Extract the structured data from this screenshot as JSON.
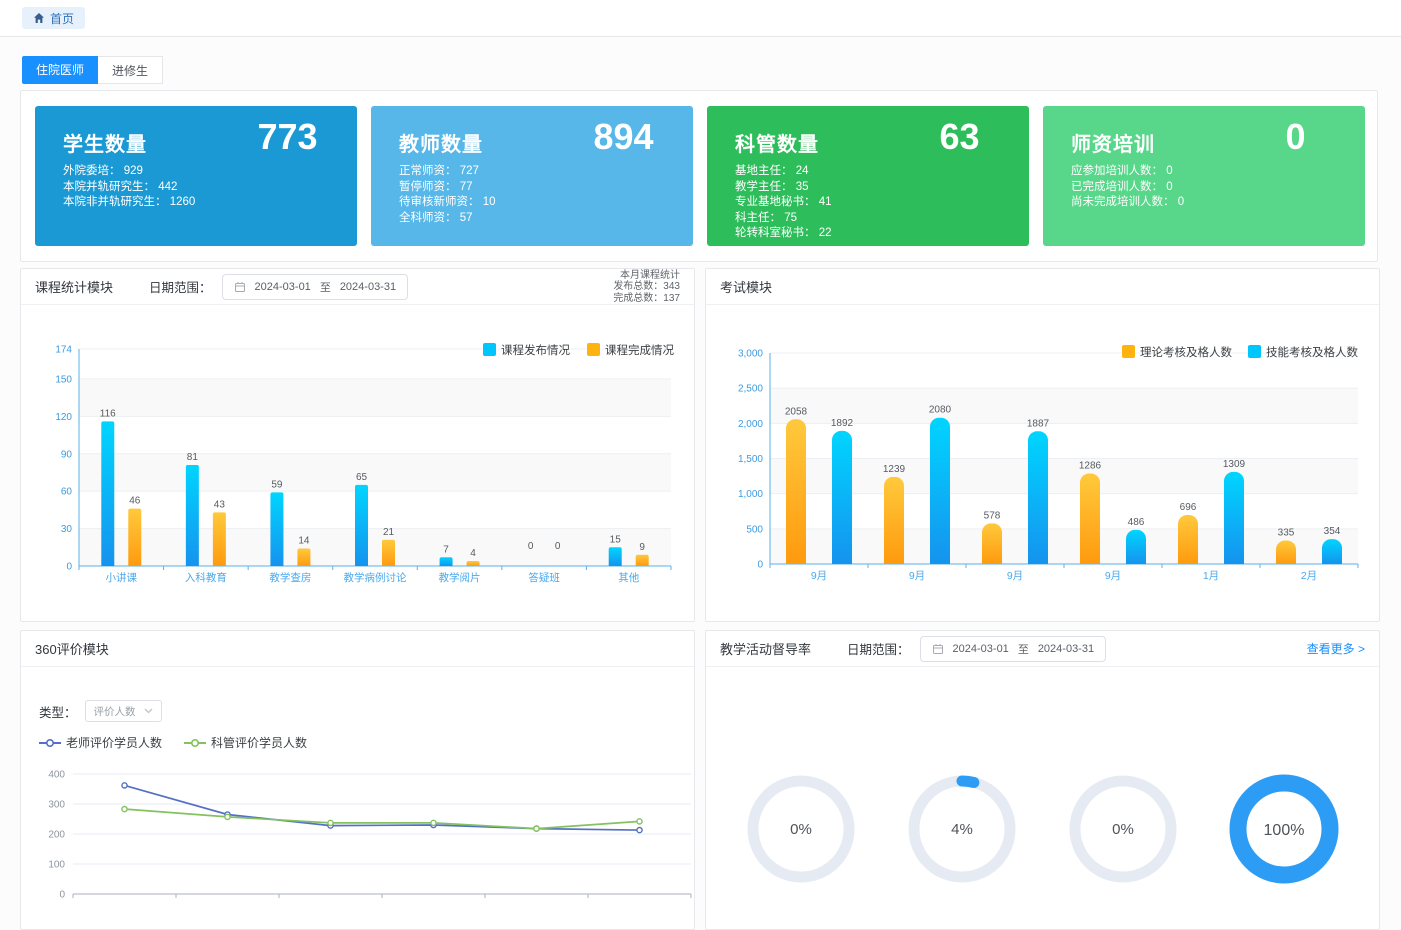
{
  "topbar": {
    "home_label": "首页"
  },
  "tabs": {
    "resident": "住院医师",
    "trainee": "进修生"
  },
  "stat_cards": [
    {
      "title": "学生数量",
      "value": "773",
      "bg": "#1a99d4",
      "details": [
        {
          "label": "外院委培",
          "value": "929"
        },
        {
          "label": "本院并轨研究生",
          "value": "442"
        },
        {
          "label": "本院非并轨研究生",
          "value": "1260"
        }
      ]
    },
    {
      "title": "教师数量",
      "value": "894",
      "bg": "#58b7e9",
      "details": [
        {
          "label": "正常师资",
          "value": "727"
        },
        {
          "label": "暂停师资",
          "value": "77"
        },
        {
          "label": "待审核新师资",
          "value": "10"
        },
        {
          "label": "全科师资",
          "value": "57"
        }
      ]
    },
    {
      "title": "科管数量",
      "value": "63",
      "bg": "#2ebd5b",
      "details": [
        {
          "label": "基地主任",
          "value": "24"
        },
        {
          "label": "教学主任",
          "value": "35"
        },
        {
          "label": "专业基地秘书",
          "value": "41"
        },
        {
          "label": "科主任",
          "value": "75"
        },
        {
          "label": "轮转科室秘书",
          "value": "22"
        }
      ]
    },
    {
      "title": "师资培训",
      "value": "0",
      "bg": "#58d689",
      "details": [
        {
          "label": "应参加培训人数",
          "value": "0"
        },
        {
          "label": "已完成培训人数",
          "value": "0"
        },
        {
          "label": "尚未完成培训人数",
          "value": "0"
        }
      ]
    }
  ],
  "course_panel": {
    "title": "课程统计模块",
    "date_label": "日期范围：",
    "date_start": "2024-03-01",
    "date_sep": "至",
    "date_end": "2024-03-31",
    "summary": [
      "本月课程统计",
      "发布总数：343",
      "完成总数：137"
    ]
  },
  "exam_panel": {
    "title": "考试模块"
  },
  "eval_panel": {
    "title": "360评价模块",
    "type_label": "类型：",
    "type_value": "评价人数"
  },
  "supervision_panel": {
    "title": "教学活动督导率",
    "date_label": "日期范围：",
    "date_start": "2024-03-01",
    "date_sep": "至",
    "date_end": "2024-03-31",
    "more_label": "查看更多 >"
  },
  "colors": {
    "accent_blue": "#1890ff",
    "bar_cyan": "#00c6ff",
    "bar_orange": "#ffb310",
    "donut_track": "#e6ebf3",
    "donut_progress": "#2d9cf4"
  },
  "chart_data": [
    {
      "id": "course-chart",
      "type": "bar",
      "title": "课程统计模块",
      "categories": [
        "小讲课",
        "入科教育",
        "教学查房",
        "教学病例讨论",
        "教学阅片",
        "答疑班",
        "其他"
      ],
      "series": [
        {
          "name": "课程发布情况",
          "values": [
            116,
            81,
            59,
            65,
            7,
            0,
            15
          ],
          "color": "#00c6ff",
          "gradient": [
            "#00d5ff",
            "#1593ee"
          ]
        },
        {
          "name": "课程完成情况",
          "values": [
            46,
            43,
            14,
            21,
            4,
            0,
            9
          ],
          "color": "#ffb310",
          "gradient": [
            "#ffc93c",
            "#ff9a0e"
          ]
        }
      ],
      "ylim": [
        0,
        174
      ],
      "yticks": [
        0,
        30,
        60,
        90,
        120,
        150,
        174
      ],
      "legend_position": "top-right",
      "value_labels": true
    },
    {
      "id": "exam-chart",
      "type": "bar",
      "title": "考试模块",
      "categories": [
        "9月",
        "9月",
        "9月",
        "9月",
        "1月",
        "2月"
      ],
      "series": [
        {
          "name": "理论考核及格人数",
          "values": [
            2058,
            1239,
            578,
            1286,
            696,
            335
          ],
          "color": "#ffb310",
          "gradient": [
            "#ffc93c",
            "#ff9a0e"
          ]
        },
        {
          "name": "技能考核及格人数",
          "values": [
            1892,
            2080,
            1887,
            486,
            1309,
            354
          ],
          "color": "#00c6ff",
          "gradient": [
            "#00d5ff",
            "#1593ee"
          ]
        }
      ],
      "ylim": [
        0,
        3000
      ],
      "yticks": [
        0,
        500,
        1000,
        1500,
        2000,
        2500,
        3000
      ],
      "comma_ticks": true,
      "legend_position": "top-right",
      "value_labels": true
    },
    {
      "id": "eval-chart",
      "type": "line",
      "title": "360评价模块",
      "x_count": 6,
      "series": [
        {
          "name": "老师评价学员人数",
          "values": [
            362,
            265,
            228,
            230,
            218,
            213
          ],
          "color": "#5470c6"
        },
        {
          "name": "科管评价学员人数",
          "values": [
            283,
            257,
            237,
            237,
            218,
            242
          ],
          "color": "#83c25e"
        }
      ],
      "ylim": [
        0,
        400
      ],
      "yticks": [
        0,
        100,
        200,
        300,
        400
      ]
    },
    {
      "id": "supervision-donuts",
      "type": "donut",
      "title": "教学活动督导率",
      "values": [
        0,
        4,
        0,
        100
      ],
      "unit": "%"
    }
  ]
}
